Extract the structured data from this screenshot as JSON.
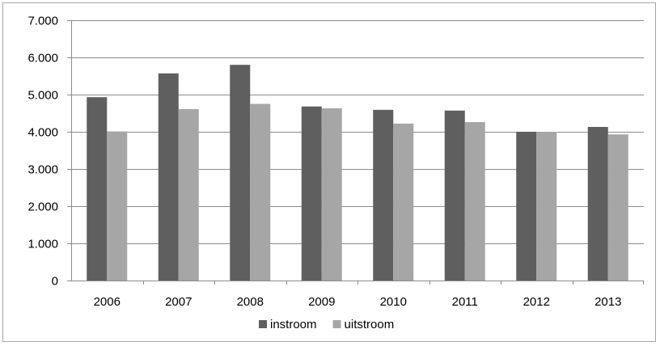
{
  "chart_data": {
    "type": "bar",
    "title": "",
    "xlabel": "",
    "ylabel": "",
    "categories": [
      "2006",
      "2007",
      "2008",
      "2009",
      "2010",
      "2011",
      "2012",
      "2013"
    ],
    "series": [
      {
        "name": "instroom",
        "color": "#5f5f5f",
        "values": [
          4930,
          5570,
          5800,
          4680,
          4590,
          4570,
          4000,
          4130
        ]
      },
      {
        "name": "uitstroom",
        "color": "#a6a6a6",
        "values": [
          4010,
          4610,
          4750,
          4630,
          4220,
          4260,
          4000,
          3930
        ]
      }
    ],
    "ylim": [
      0,
      7000
    ],
    "yticks": [
      0,
      1000,
      2000,
      3000,
      4000,
      5000,
      6000,
      7000
    ],
    "ytick_labels": [
      "0",
      "1.000",
      "2.000",
      "3.000",
      "4.000",
      "5.000",
      "6.000",
      "7.000"
    ],
    "grid": true,
    "legend_position": "bottom"
  }
}
